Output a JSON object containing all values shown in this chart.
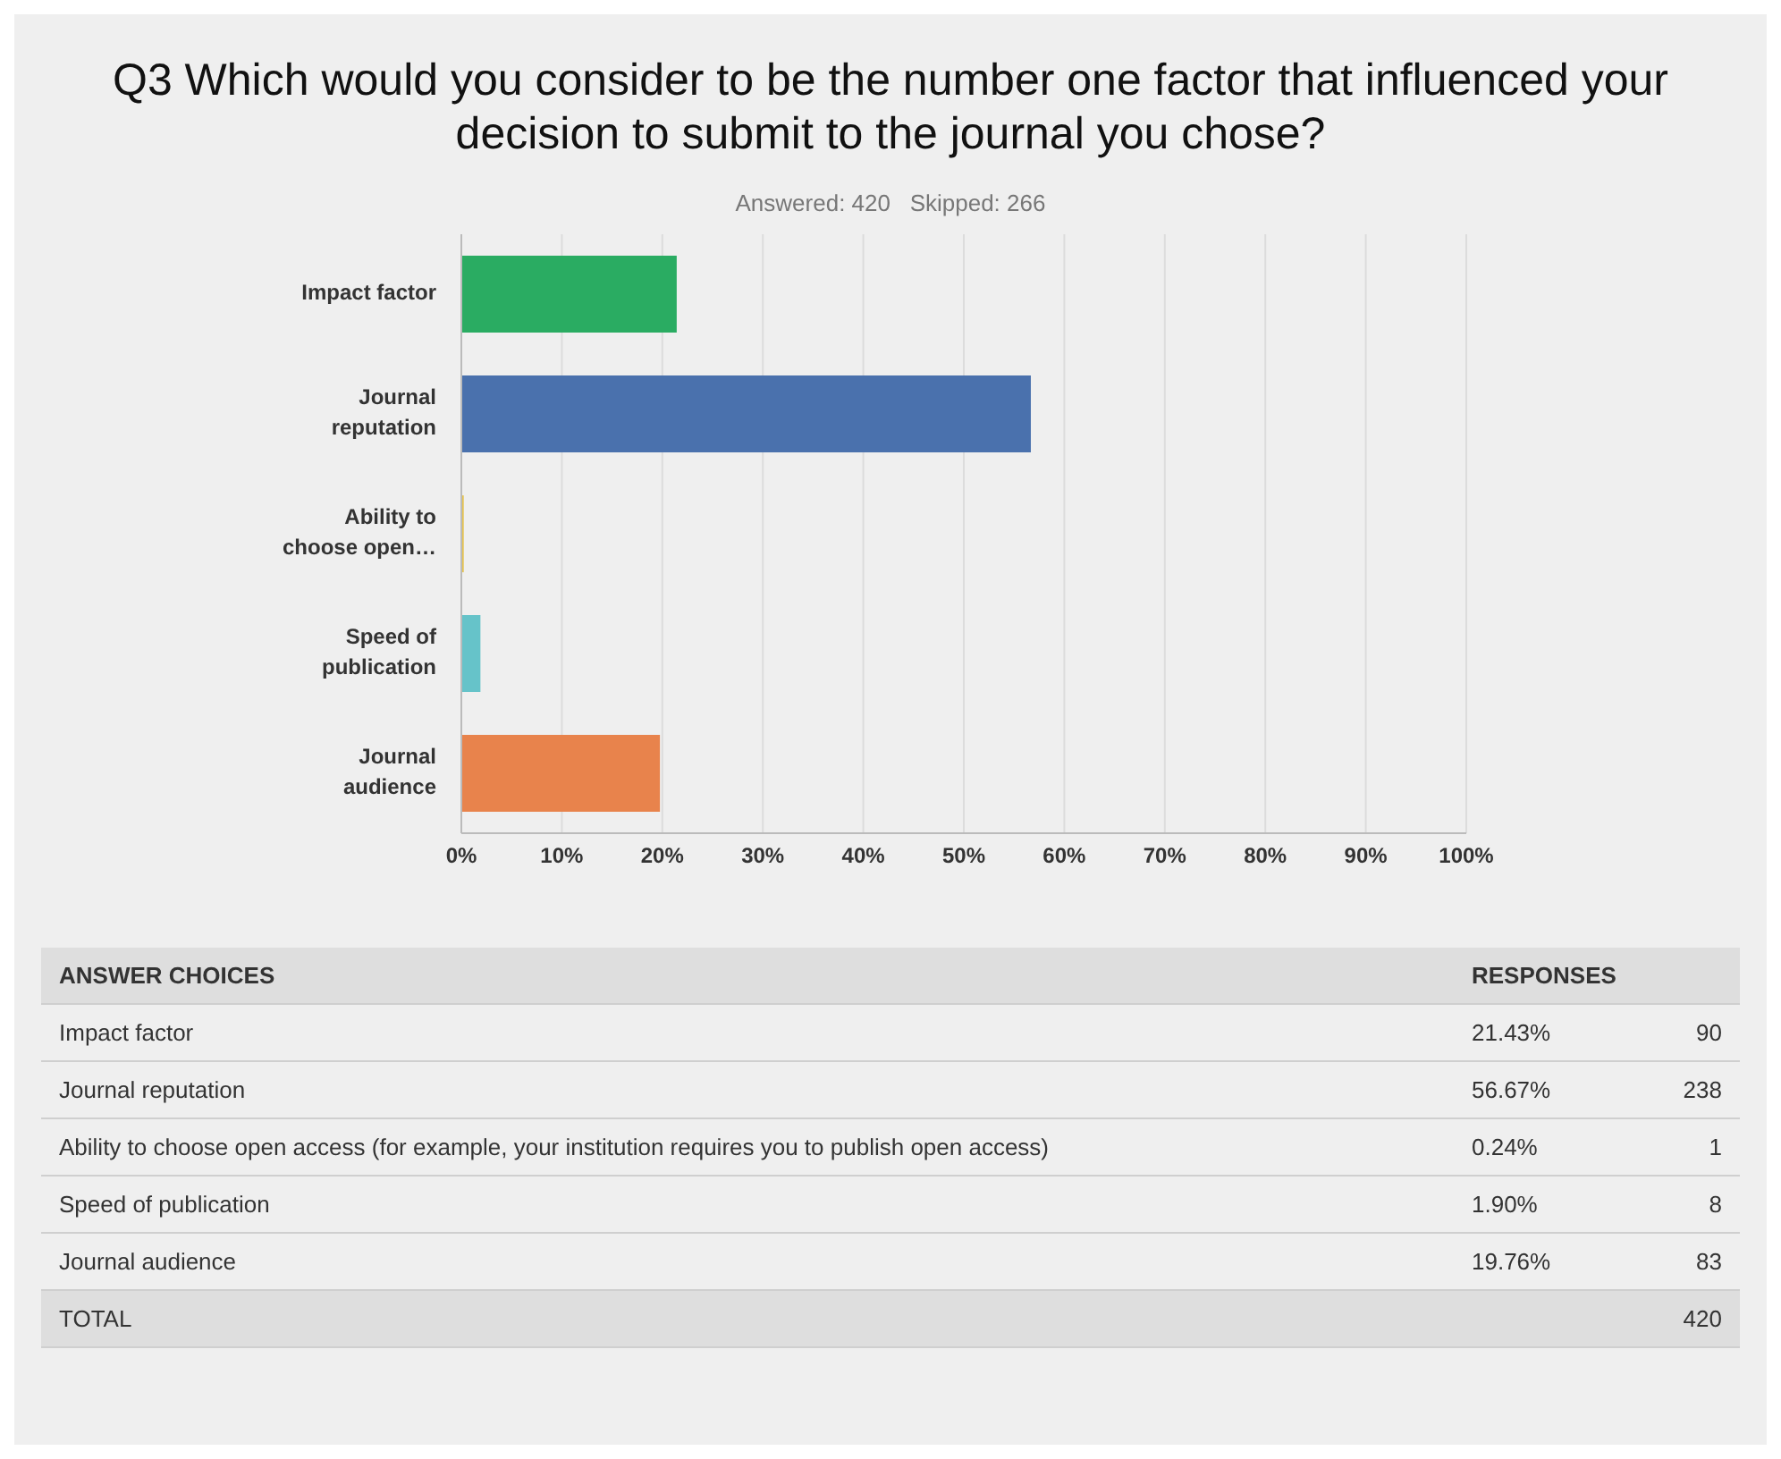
{
  "chart_data": {
    "type": "bar",
    "orientation": "horizontal",
    "title": "Q3 Which would you consider to be the number one factor that influenced your decision to submit to the journal you chose?",
    "subtitle": "Answered: 420   Skipped: 266",
    "categories": [
      "Impact factor",
      "Journal reputation",
      "Ability to choose open…",
      "Speed of publication",
      "Journal audience"
    ],
    "values": [
      21.43,
      56.67,
      0.24,
      1.9,
      19.76
    ],
    "colors": [
      "#2aac62",
      "#4a71ad",
      "#e6c34f",
      "#66c3c9",
      "#e8834c"
    ],
    "xlim": [
      0,
      100
    ],
    "xticks": [
      {
        "value": 0,
        "label": "0%"
      },
      {
        "value": 10,
        "label": "10%"
      },
      {
        "value": 20,
        "label": "20%"
      },
      {
        "value": 30,
        "label": "30%"
      },
      {
        "value": 40,
        "label": "40%"
      },
      {
        "value": 50,
        "label": "50%"
      },
      {
        "value": 60,
        "label": "60%"
      },
      {
        "value": 70,
        "label": "70%"
      },
      {
        "value": 80,
        "label": "80%"
      },
      {
        "value": 90,
        "label": "90%"
      },
      {
        "value": 100,
        "label": "100%"
      }
    ],
    "grid": "x",
    "annotations": [
      "ANSWER CHOICES",
      "RESPONSES",
      "Impact factor",
      "21.43%",
      "90",
      "Journal reputation",
      "56.67%",
      "238",
      "Ability to choose open access (for example, your institution requires you to publish open access)",
      "0.24%",
      "1",
      "Speed of publication",
      "1.90%",
      "8",
      "Journal audience",
      "19.76%",
      "83",
      "TOTAL",
      "420"
    ]
  }
}
